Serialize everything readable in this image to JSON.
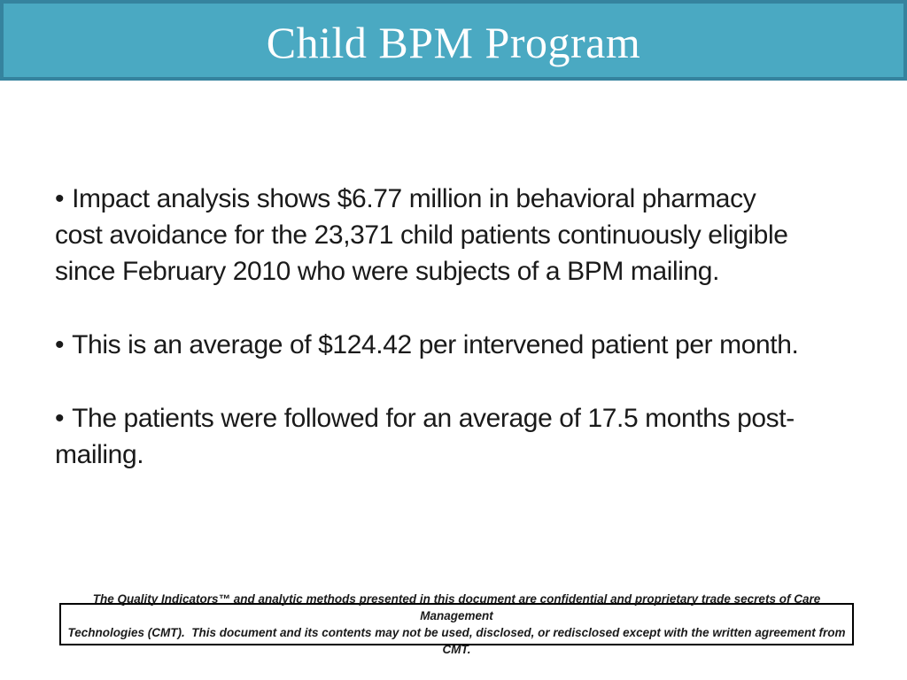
{
  "slide": {
    "title": "Child BPM Program"
  },
  "body": {
    "bullets": [
      {
        "marker": "•",
        "lines": [
          "Impact analysis shows $6.77 million in behavioral pharmacy",
          "cost avoidance for the 23,371 child patients continuously eligible",
          "since February 2010 who were subjects of a BPM mailing."
        ]
      },
      {
        "marker": "•",
        "lines": [
          "This is an average of $124.42 per intervened patient per month."
        ]
      },
      {
        "marker": "•",
        "lines": [
          "The patients were followed for an average of 17.5 months post-",
          "mailing."
        ]
      }
    ]
  },
  "footer": {
    "lines": [
      "The Quality Indicators™ and analytic methods presented in this document are confidential and proprietary trade secrets of Care Management",
      "Technologies (CMT).  This document and its contents may not be used, disclosed, or redisclosed except with the written agreement from CMT."
    ]
  },
  "colors": {
    "banner_fill": "#4aa9c2",
    "banner_border": "#35839e",
    "title_text": "#ffffff",
    "body_text": "#1a1a1a",
    "footer_border": "#000000"
  }
}
